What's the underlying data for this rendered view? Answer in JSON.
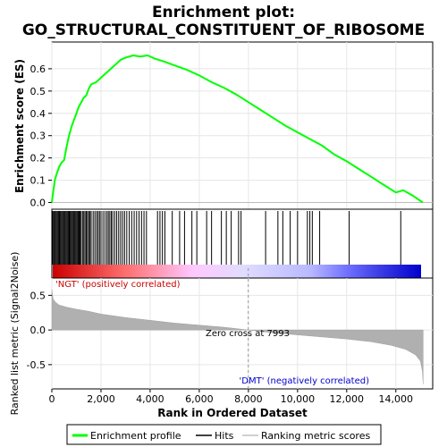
{
  "chart_data": {
    "type": "line",
    "title": "Enrichment plot:",
    "subtitle": "GO_STRUCTURAL_CONSTITUENT_OF_RIBOSOME",
    "xlabel": "Rank in Ordered Dataset",
    "xlim": [
      0,
      15500
    ],
    "x_ticks": [
      0,
      2000,
      4000,
      6000,
      8000,
      10000,
      12000,
      14000
    ],
    "x_tick_labels": [
      "0",
      "2,000",
      "4,000",
      "6,000",
      "8,000",
      "10,000",
      "12,000",
      "14,000"
    ],
    "grid": true,
    "legend_position": "bottom",
    "legend": [
      {
        "label": "Enrichment profile",
        "color": "#00ff00"
      },
      {
        "label": "Hits",
        "color": "#000000"
      },
      {
        "label": "Ranking metric scores",
        "color": "#c0c0c0"
      }
    ],
    "es_panel": {
      "ylabel": "Enrichment score (ES)",
      "ylim": [
        -0.03,
        0.72
      ],
      "y_ticks": [
        0.0,
        0.1,
        0.2,
        0.3,
        0.4,
        0.5,
        0.6
      ],
      "y_tick_labels": [
        "0.0",
        "0.1",
        "0.2",
        "0.3",
        "0.4",
        "0.5",
        "0.6"
      ],
      "series_color": "#00ff00",
      "points": [
        [
          0,
          0.0
        ],
        [
          60,
          0.05
        ],
        [
          120,
          0.1
        ],
        [
          200,
          0.13
        ],
        [
          300,
          0.16
        ],
        [
          400,
          0.18
        ],
        [
          500,
          0.19
        ],
        [
          600,
          0.25
        ],
        [
          700,
          0.3
        ],
        [
          800,
          0.34
        ],
        [
          900,
          0.37
        ],
        [
          1000,
          0.4
        ],
        [
          1100,
          0.43
        ],
        [
          1200,
          0.45
        ],
        [
          1300,
          0.47
        ],
        [
          1400,
          0.48
        ],
        [
          1500,
          0.51
        ],
        [
          1600,
          0.53
        ],
        [
          1800,
          0.54
        ],
        [
          2000,
          0.56
        ],
        [
          2200,
          0.58
        ],
        [
          2400,
          0.6
        ],
        [
          2600,
          0.62
        ],
        [
          2800,
          0.64
        ],
        [
          3000,
          0.65
        ],
        [
          3300,
          0.66
        ],
        [
          3600,
          0.655
        ],
        [
          3900,
          0.66
        ],
        [
          4200,
          0.645
        ],
        [
          4500,
          0.635
        ],
        [
          5000,
          0.615
        ],
        [
          5500,
          0.595
        ],
        [
          6000,
          0.57
        ],
        [
          6500,
          0.54
        ],
        [
          7000,
          0.515
        ],
        [
          7500,
          0.485
        ],
        [
          8000,
          0.45
        ],
        [
          8500,
          0.415
        ],
        [
          9000,
          0.38
        ],
        [
          9500,
          0.345
        ],
        [
          10000,
          0.315
        ],
        [
          10500,
          0.285
        ],
        [
          11000,
          0.255
        ],
        [
          11500,
          0.215
        ],
        [
          12000,
          0.185
        ],
        [
          12500,
          0.15
        ],
        [
          13000,
          0.115
        ],
        [
          13500,
          0.08
        ],
        [
          14000,
          0.045
        ],
        [
          14300,
          0.055
        ],
        [
          14700,
          0.03
        ],
        [
          15100,
          0.0
        ]
      ]
    },
    "hits": {
      "color": "#000000",
      "positions": [
        30,
        70,
        110,
        150,
        190,
        230,
        270,
        310,
        350,
        390,
        430,
        470,
        510,
        550,
        590,
        630,
        670,
        710,
        750,
        790,
        830,
        870,
        910,
        950,
        990,
        1030,
        1070,
        1110,
        1150,
        1190,
        1250,
        1300,
        1350,
        1400,
        1450,
        1500,
        1550,
        1600,
        1680,
        1750,
        1820,
        1880,
        1940,
        2000,
        2080,
        2160,
        2240,
        2300,
        2360,
        2420,
        2480,
        2560,
        2640,
        2720,
        2800,
        2880,
        2960,
        3050,
        3150,
        3250,
        3350,
        3450,
        3550,
        3650,
        3750,
        3850,
        4300,
        4400,
        4500,
        4600,
        4900,
        5200,
        5400,
        5700,
        5900,
        6300,
        6500,
        6900,
        7100,
        7300,
        7600,
        7700,
        8700,
        9200,
        9400,
        9700,
        10000,
        10400,
        10500,
        10600,
        10900,
        12100,
        14200
      ]
    },
    "ranking_panel": {
      "ylabel": "Ranked list metric (Signal2Noise)",
      "ylim": [
        -0.85,
        0.75
      ],
      "y_ticks": [
        -0.5,
        0.0,
        0.5
      ],
      "y_tick_labels": [
        "-0.5",
        "0.0",
        "0.5"
      ],
      "fill_color": "#b0b0b0",
      "points": [
        [
          0,
          0.58
        ],
        [
          50,
          0.45
        ],
        [
          150,
          0.4
        ],
        [
          300,
          0.36
        ],
        [
          600,
          0.33
        ],
        [
          1000,
          0.3
        ],
        [
          1500,
          0.27
        ],
        [
          2000,
          0.23
        ],
        [
          3000,
          0.18
        ],
        [
          4000,
          0.14
        ],
        [
          5000,
          0.1
        ],
        [
          6000,
          0.07
        ],
        [
          7000,
          0.04
        ],
        [
          7993,
          0.0
        ],
        [
          9000,
          -0.04
        ],
        [
          10000,
          -0.07
        ],
        [
          11000,
          -0.1
        ],
        [
          12000,
          -0.13
        ],
        [
          13000,
          -0.17
        ],
        [
          13800,
          -0.22
        ],
        [
          14400,
          -0.28
        ],
        [
          14800,
          -0.36
        ],
        [
          15000,
          -0.45
        ],
        [
          15080,
          -0.6
        ],
        [
          15110,
          -0.78
        ]
      ],
      "zero_cross_label": "Zero cross at 7993",
      "zero_cross": 7993,
      "positive_label": "'NGT' (positively correlated)",
      "negative_label": "'DMT' (negatively correlated)",
      "positive_color": "#cc0000",
      "negative_color": "#0000cc"
    },
    "colorbar_stops": [
      "#cc0000",
      "#ff8080",
      "#ffd6ff",
      "#d8d8ff",
      "#8080ff",
      "#3030e0",
      "#0000cc"
    ]
  }
}
